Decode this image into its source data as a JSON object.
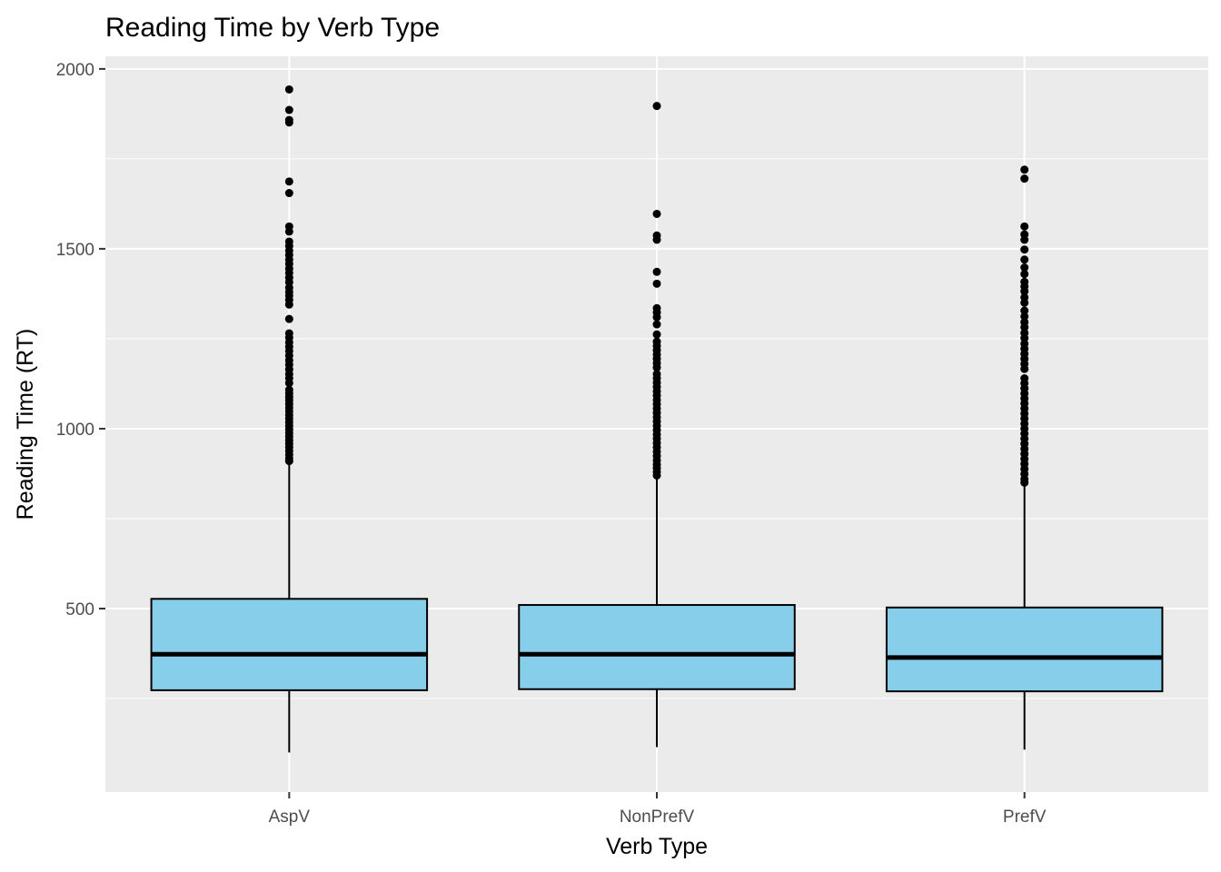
{
  "chart_data": {
    "type": "boxplot",
    "title": "Reading Time by Verb Type",
    "xlabel": "Verb Type",
    "ylabel": "Reading Time (RT)",
    "categories": [
      "AspV",
      "NonPrefV",
      "PrefV"
    ],
    "y_ticks": [
      500,
      1000,
      1500,
      2000
    ],
    "ylim": [
      -10,
      2035
    ],
    "grid": true,
    "legend": "none",
    "colors": {
      "panel_bg": "#ebebeb",
      "grid": "#ffffff",
      "box_fill": "#87ceeb",
      "box_line": "#000000",
      "outlier": "#000000",
      "tick_label": "#4d4d4d"
    },
    "boxes": [
      {
        "category": "AspV",
        "whisker_low": 100,
        "q1": 273,
        "median": 373,
        "q3": 527,
        "whisker_high": 905,
        "outliers": [
          1943,
          1886,
          1858,
          1851,
          1687,
          1655,
          1562,
          1548,
          1520,
          1508,
          1495,
          1483,
          1470,
          1458,
          1445,
          1433,
          1420,
          1407,
          1392,
          1380,
          1370,
          1358,
          1345,
          1305,
          1265,
          1253,
          1240,
          1228,
          1216,
          1203,
          1190,
          1178,
          1165,
          1152,
          1140,
          1127,
          1108,
          1098,
          1088,
          1078,
          1068,
          1058,
          1048,
          1038,
          1028,
          1018,
          1008,
          998,
          988,
          978,
          968,
          958,
          948,
          938,
          928,
          918,
          910
        ]
      },
      {
        "category": "NonPrefV",
        "whisker_low": 115,
        "q1": 276,
        "median": 373,
        "q3": 510,
        "whisker_high": 866,
        "outliers": [
          1897,
          1597,
          1537,
          1525,
          1436,
          1403,
          1335,
          1323,
          1310,
          1290,
          1262,
          1242,
          1230,
          1218,
          1206,
          1194,
          1182,
          1170,
          1152,
          1140,
          1128,
          1116,
          1104,
          1092,
          1080,
          1068,
          1056,
          1044,
          1032,
          1020,
          1008,
          996,
          984,
          972,
          960,
          948,
          936,
          924,
          912,
          900,
          890,
          880,
          870
        ]
      },
      {
        "category": "PrefV",
        "whisker_low": 108,
        "q1": 270,
        "median": 364,
        "q3": 503,
        "whisker_high": 843,
        "outliers": [
          1720,
          1695,
          1562,
          1540,
          1525,
          1498,
          1470,
          1448,
          1430,
          1408,
          1395,
          1382,
          1365,
          1350,
          1328,
          1312,
          1296,
          1282,
          1266,
          1252,
          1236,
          1222,
          1208,
          1194,
          1180,
          1166,
          1140,
          1126,
          1112,
          1098,
          1084,
          1070,
          1056,
          1042,
          1028,
          1014,
          1000,
          986,
          972,
          958,
          944,
          930,
          916,
          902,
          888,
          874,
          860,
          850
        ]
      }
    ]
  }
}
